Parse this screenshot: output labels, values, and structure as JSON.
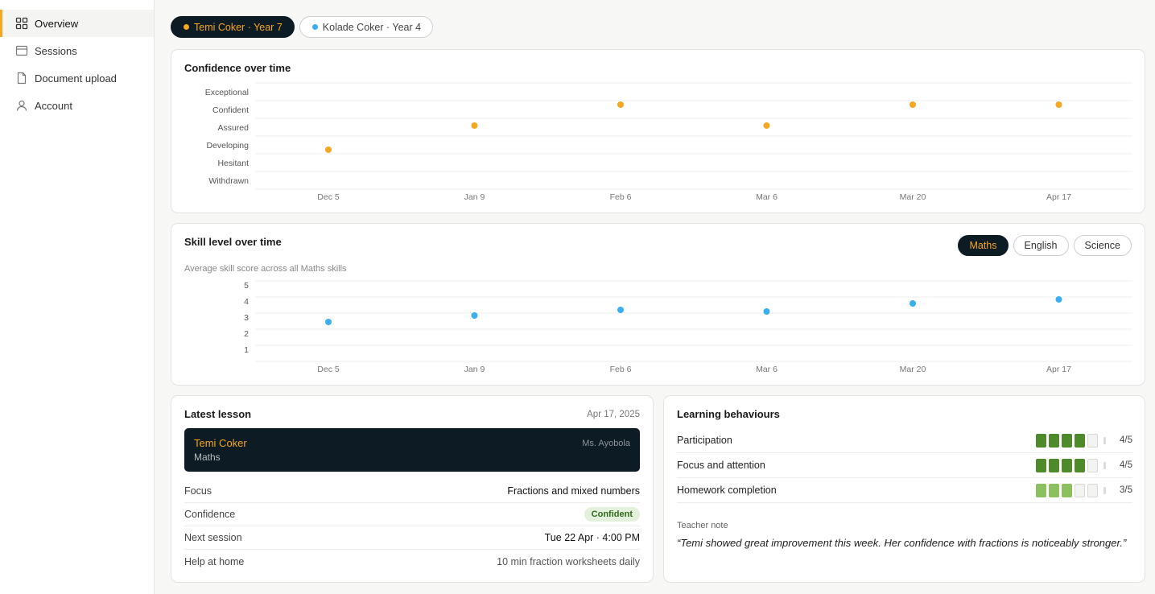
{
  "sidebar": {
    "items": [
      {
        "label": "Overview",
        "icon": "grid-icon",
        "active": true
      },
      {
        "label": "Sessions",
        "icon": "calendar-icon",
        "active": false
      },
      {
        "label": "Document upload",
        "icon": "document-icon",
        "active": false
      },
      {
        "label": "Account",
        "icon": "user-icon",
        "active": false
      }
    ]
  },
  "students": [
    {
      "label": "Temi Coker · Year 7",
      "color": "#f5a623",
      "active": true
    },
    {
      "label": "Kolade Coker · Year 4",
      "color": "#3aaef0",
      "active": false
    }
  ],
  "confidence_card": {
    "title": "Confidence over time"
  },
  "skill_card": {
    "title": "Skill level over time",
    "subtitle": "Average skill score across all Maths skills",
    "subjects": [
      {
        "label": "Maths",
        "active": true
      },
      {
        "label": "English",
        "active": false
      },
      {
        "label": "Science",
        "active": false
      }
    ]
  },
  "chart_data": [
    {
      "type": "scatter",
      "title": "Confidence over time",
      "categories": [
        "Dec 5",
        "Jan 9",
        "Feb 6",
        "Mar 6",
        "Mar 20",
        "Apr 17"
      ],
      "y_levels": [
        "Withdrawn",
        "Hesitant",
        "Developing",
        "Assured",
        "Confident",
        "Exceptional"
      ],
      "values": [
        "Developing",
        "Assured",
        "Confident",
        "Assured",
        "Confident",
        "Confident"
      ],
      "color": "#f5a623",
      "grid": true
    },
    {
      "type": "scatter",
      "title": "Skill level over time",
      "categories": [
        "Dec 5",
        "Jan 9",
        "Feb 6",
        "Mar 6",
        "Mar 20",
        "Apr 17"
      ],
      "yticks": [
        "1",
        "2",
        "3",
        "4",
        "5"
      ],
      "ylim": [
        1,
        5
      ],
      "values": [
        2.75,
        3.15,
        3.5,
        3.4,
        3.9,
        4.15
      ],
      "color": "#3aaef0",
      "grid": true
    }
  ],
  "latest_lesson": {
    "title": "Latest lesson",
    "date": "Apr 17, 2025",
    "student": "Temi Coker",
    "subject": "Maths",
    "teacher": "Ms. Ayobola",
    "rows": [
      {
        "key": "Focus",
        "value": "Fractions and mixed numbers"
      },
      {
        "key": "Confidence",
        "value": "Confident"
      },
      {
        "key": "Next session",
        "value": "Tue 22 Apr · 4:00 PM"
      },
      {
        "key": "Help at home",
        "value": "10 min fraction worksheets daily"
      }
    ]
  },
  "behaviours": {
    "title": "Learning behaviours",
    "items": [
      {
        "label": "Participation",
        "score": 4,
        "max": 5,
        "score_text": "4/5",
        "shade": "#4f8a2a"
      },
      {
        "label": "Focus and attention",
        "score": 4,
        "max": 5,
        "score_text": "4/5",
        "shade": "#4f8a2a"
      },
      {
        "label": "Homework completion",
        "score": 3,
        "max": 5,
        "score_text": "3/5",
        "shade": "#8bc05f"
      }
    ],
    "note_label": "Teacher note",
    "note": "“Temi showed great improvement this week. Her confidence with fractions is noticeably stronger.”"
  }
}
